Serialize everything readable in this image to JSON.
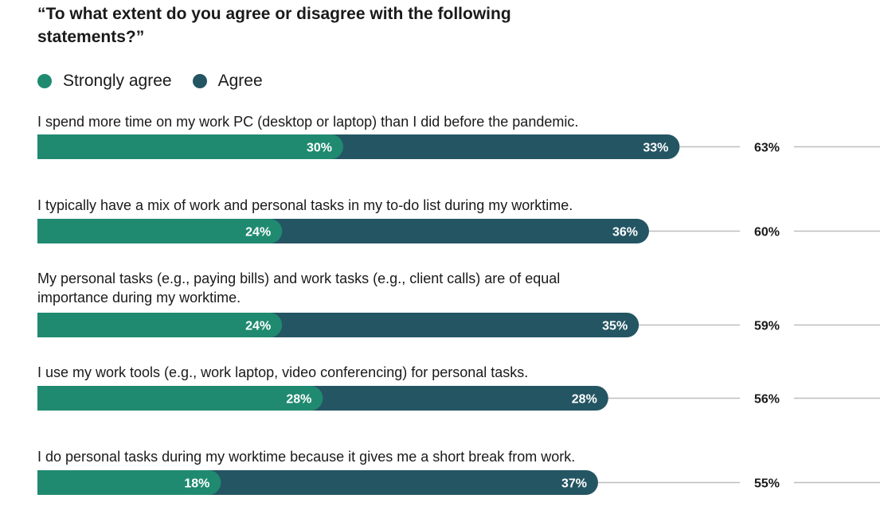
{
  "chart_data": {
    "type": "bar",
    "orientation": "horizontal",
    "stacked": true,
    "title": "“To what extent do you agree or disagree with the following statements?”",
    "xlim": [
      0,
      70
    ],
    "legend_position": "top-left",
    "categories": [
      "I spend more time on my work PC (desktop or laptop) than I did before the pandemic.",
      "I typically have a mix of work and personal tasks in my to-do list during my worktime.",
      "My personal tasks (e.g., paying bills) and work tasks (e.g., client calls) are of equal importance during my worktime.",
      "I use my work tools (e.g., work laptop, video conferencing) for personal tasks.",
      "I do personal tasks during my worktime because it gives me a short break from work."
    ],
    "series": [
      {
        "name": "Strongly agree",
        "color": "#1f8a70",
        "values": [
          30,
          24,
          24,
          28,
          18
        ]
      },
      {
        "name": "Agree",
        "color": "#245563",
        "values": [
          33,
          36,
          35,
          28,
          37
        ]
      }
    ],
    "totals": [
      63,
      60,
      59,
      56,
      55
    ],
    "value_suffix": "%"
  }
}
